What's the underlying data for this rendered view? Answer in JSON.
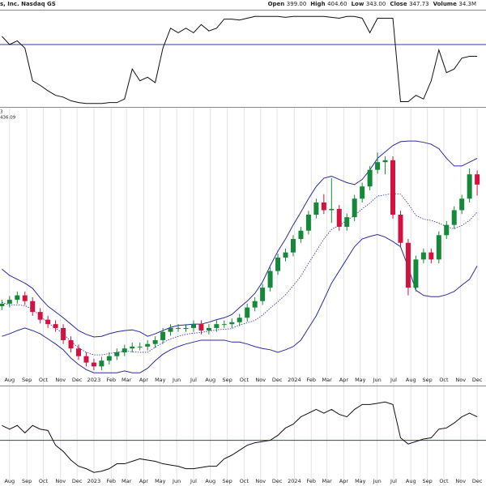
{
  "header": {
    "title": "s, Inc. Nasdaq GS",
    "quote": [
      {
        "label": "Open",
        "value": "399.00"
      },
      {
        "label": "High",
        "value": "404.60"
      },
      {
        "label": "Low",
        "value": "343.00"
      },
      {
        "label": "Close",
        "value": "347.73"
      },
      {
        "label": "Volume",
        "value": "34.3M"
      }
    ]
  },
  "chart_data": [
    {
      "type": "line",
      "color": "#111111",
      "xlim": [
        1.5,
        128.3
      ],
      "ylim": [
        0,
        100
      ],
      "reference_line": 67,
      "reference_color": "#3a3aa8",
      "x": [
        2,
        4,
        6,
        8,
        10,
        12,
        14,
        16,
        18,
        20,
        22,
        24,
        26,
        28,
        30,
        32,
        34,
        36,
        38,
        40,
        42,
        44,
        46,
        48,
        50,
        52,
        54,
        56,
        58,
        60,
        62,
        64,
        66,
        68,
        70,
        72,
        74,
        76,
        78,
        80,
        82,
        84,
        86,
        88,
        90,
        92,
        94,
        96,
        98,
        100,
        102,
        104,
        106,
        108,
        110,
        112,
        114,
        116,
        118,
        120,
        122,
        124,
        126
      ],
      "values": [
        76,
        67,
        71,
        63,
        27,
        22,
        16,
        11,
        9,
        5,
        3,
        2,
        2,
        2,
        3,
        3,
        7,
        40,
        27,
        31,
        25,
        63,
        85,
        80,
        85,
        80,
        89,
        82,
        85,
        95,
        95,
        94,
        96,
        98,
        98,
        98,
        98,
        97,
        98,
        98,
        98,
        98,
        98,
        97,
        96,
        98,
        98,
        96,
        80,
        96,
        96,
        96,
        4,
        4,
        11,
        7,
        27,
        61,
        36,
        40,
        52,
        54,
        54
      ]
    },
    {
      "type": "candlestick",
      "labels": [
        "3",
        "436.09"
      ],
      "label_colors": [
        "#222222",
        "#2b2ba0"
      ],
      "up_color": "#15883a",
      "down_color": "#d3123f",
      "grid": true,
      "xlim": [
        1.5,
        128.3
      ],
      "ylim": [
        60,
        480
      ],
      "xticks": [
        {
          "value": 4,
          "label": "Aug"
        },
        {
          "value": 8.5,
          "label": "Sep"
        },
        {
          "value": 12.8,
          "label": "Oct"
        },
        {
          "value": 17.3,
          "label": "Nov"
        },
        {
          "value": 21.6,
          "label": "Dec"
        },
        {
          "value": 26,
          "label": "2023"
        },
        {
          "value": 30.5,
          "label": "Feb"
        },
        {
          "value": 34.5,
          "label": "Mar"
        },
        {
          "value": 39,
          "label": "Apr"
        },
        {
          "value": 43.3,
          "label": "May"
        },
        {
          "value": 47.6,
          "label": "Jun"
        },
        {
          "value": 52,
          "label": "Jul"
        },
        {
          "value": 56.4,
          "label": "Aug"
        },
        {
          "value": 60.8,
          "label": "Sep"
        },
        {
          "value": 65.2,
          "label": "Oct"
        },
        {
          "value": 69.5,
          "label": "Nov"
        },
        {
          "value": 73.8,
          "label": "Dec"
        },
        {
          "value": 78.3,
          "label": "2024"
        },
        {
          "value": 82.7,
          "label": "Feb"
        },
        {
          "value": 86.8,
          "label": "Mar"
        },
        {
          "value": 91.2,
          "label": "Apr"
        },
        {
          "value": 95.5,
          "label": "May"
        },
        {
          "value": 99.9,
          "label": "Jun"
        },
        {
          "value": 104.2,
          "label": "Jul"
        },
        {
          "value": 108.7,
          "label": "Aug"
        },
        {
          "value": 113,
          "label": "Sep"
        },
        {
          "value": 117.3,
          "label": "Oct"
        },
        {
          "value": 121.7,
          "label": "Nov"
        },
        {
          "value": 126,
          "label": "Dec"
        }
      ],
      "x": [
        2,
        4,
        6,
        8,
        10,
        12,
        14,
        16,
        18,
        20,
        22,
        24,
        26,
        28,
        30,
        32,
        34,
        36,
        38,
        40,
        42,
        44,
        46,
        48,
        50,
        52,
        54,
        56,
        58,
        60,
        62,
        64,
        66,
        68,
        70,
        72,
        74,
        76,
        78,
        80,
        82,
        84,
        86,
        88,
        90,
        92,
        94,
        96,
        98,
        100,
        102,
        104,
        106,
        108,
        110,
        112,
        114,
        116,
        118,
        120,
        122,
        124,
        126
      ],
      "open": [
        170,
        174,
        180,
        187,
        178,
        161,
        149,
        142,
        136,
        117,
        104,
        92,
        82,
        76,
        85,
        92,
        98,
        104,
        107,
        107,
        111,
        117,
        130,
        136,
        136,
        136,
        142,
        132,
        136,
        142,
        142,
        145,
        152,
        168,
        178,
        199,
        225,
        246,
        254,
        275,
        288,
        313,
        332,
        320,
        322,
        294,
        309,
        338,
        357,
        383,
        395,
        398,
        313,
        269,
        199,
        243,
        254,
        243,
        281,
        297,
        320,
        338,
        376
      ],
      "high": [
        180,
        186,
        193,
        193,
        184,
        167,
        155,
        148,
        142,
        123,
        110,
        98,
        88,
        91,
        98,
        104,
        110,
        113,
        113,
        117,
        123,
        136,
        142,
        142,
        142,
        148,
        148,
        142,
        148,
        148,
        151,
        158,
        174,
        184,
        205,
        231,
        252,
        260,
        281,
        294,
        319,
        338,
        345,
        370,
        328,
        315,
        344,
        363,
        389,
        410,
        404,
        404,
        319,
        275,
        249,
        260,
        260,
        287,
        303,
        326,
        344,
        385,
        382
      ],
      "low": [
        164,
        168,
        174,
        172,
        155,
        143,
        136,
        130,
        111,
        98,
        86,
        76,
        70,
        70,
        79,
        86,
        92,
        98,
        101,
        101,
        105,
        111,
        124,
        130,
        130,
        130,
        126,
        126,
        130,
        136,
        136,
        139,
        146,
        162,
        172,
        193,
        219,
        240,
        248,
        269,
        282,
        307,
        314,
        300,
        288,
        288,
        303,
        332,
        351,
        377,
        376,
        307,
        263,
        187,
        193,
        237,
        237,
        237,
        275,
        291,
        314,
        332,
        343
      ],
      "close": [
        174,
        180,
        187,
        178,
        161,
        149,
        142,
        136,
        117,
        104,
        92,
        82,
        76,
        85,
        92,
        98,
        104,
        107,
        107,
        111,
        117,
        130,
        136,
        136,
        136,
        142,
        132,
        136,
        142,
        142,
        145,
        152,
        168,
        178,
        199,
        225,
        246,
        254,
        275,
        288,
        313,
        332,
        320,
        322,
        294,
        309,
        338,
        357,
        383,
        395,
        398,
        313,
        269,
        199,
        243,
        254,
        243,
        281,
        297,
        320,
        338,
        376,
        360
      ],
      "bands": [
        {
          "color": "#2b2ba0",
          "dashed": false,
          "values": [
            228,
            218,
            212,
            206,
            198,
            183,
            170,
            161,
            152,
            142,
            132,
            126,
            122,
            123,
            127,
            130,
            132,
            133,
            130,
            123,
            127,
            132,
            137,
            140,
            141,
            142,
            142,
            145,
            149,
            152,
            157,
            168,
            178,
            190,
            208,
            233,
            256,
            275,
            297,
            317,
            338,
            357,
            370,
            373,
            368,
            363,
            360,
            368,
            383,
            401,
            411,
            421,
            427,
            428,
            428,
            426,
            423,
            416,
            401,
            389,
            389,
            395,
            401
          ]
        },
        {
          "color": "#2b2ba0",
          "dashed": true,
          "values": [
            176,
            172,
            172,
            171,
            165,
            155,
            144,
            136,
            127,
            115,
            105,
            98,
            94,
            94,
            96,
            98,
            100,
            99,
            98,
            98,
            106,
            113,
            119,
            123,
            126,
            128,
            129,
            131,
            133,
            134,
            135,
            141,
            144,
            148,
            156,
            167,
            177,
            188,
            202,
            217,
            237,
            256,
            275,
            290,
            296,
            304,
            312,
            322,
            331,
            342,
            344,
            346,
            345,
            330,
            312,
            306,
            304,
            300,
            294,
            291,
            296,
            304,
            317
          ]
        },
        {
          "color": "#2b2ba0",
          "dashed": false,
          "values": [
            123,
            127,
            132,
            136,
            132,
            127,
            119,
            111,
            102,
            89,
            79,
            71,
            66,
            66,
            66,
            66,
            69,
            66,
            66,
            73,
            85,
            95,
            102,
            107,
            111,
            114,
            117,
            117,
            117,
            117,
            114,
            114,
            111,
            107,
            104,
            102,
            98,
            102,
            107,
            117,
            136,
            155,
            180,
            206,
            225,
            244,
            263,
            275,
            279,
            282,
            278,
            271,
            263,
            231,
            195,
            187,
            185,
            185,
            188,
            193,
            203,
            212,
            233
          ]
        }
      ]
    },
    {
      "type": "line",
      "color": "#111111",
      "grid": true,
      "xlim": [
        1.5,
        128.3
      ],
      "ylim": [
        10,
        90
      ],
      "reference_line": 47,
      "reference_color": "#3a3aa8",
      "xticks": [
        {
          "value": 4,
          "label": "Aug"
        },
        {
          "value": 8.5,
          "label": "Sep"
        },
        {
          "value": 12.8,
          "label": "Oct"
        },
        {
          "value": 17.3,
          "label": "Nov"
        },
        {
          "value": 21.6,
          "label": "Dec"
        },
        {
          "value": 26,
          "label": "2023"
        },
        {
          "value": 30.5,
          "label": "Feb"
        },
        {
          "value": 34.5,
          "label": "Mar"
        },
        {
          "value": 39,
          "label": "Apr"
        },
        {
          "value": 43.3,
          "label": "May"
        },
        {
          "value": 47.6,
          "label": "Jun"
        },
        {
          "value": 52,
          "label": "Jul"
        },
        {
          "value": 56.4,
          "label": "Aug"
        },
        {
          "value": 60.8,
          "label": "Sep"
        },
        {
          "value": 65.2,
          "label": "Oct"
        },
        {
          "value": 69.5,
          "label": "Nov"
        },
        {
          "value": 73.8,
          "label": "Dec"
        },
        {
          "value": 78.3,
          "label": "2024"
        },
        {
          "value": 82.7,
          "label": "Feb"
        },
        {
          "value": 86.8,
          "label": "Mar"
        },
        {
          "value": 91.2,
          "label": "Apr"
        },
        {
          "value": 95.5,
          "label": "May"
        },
        {
          "value": 99.9,
          "label": "Jun"
        },
        {
          "value": 104.2,
          "label": "Jul"
        },
        {
          "value": 108.7,
          "label": "Aug"
        },
        {
          "value": 113,
          "label": "Sep"
        },
        {
          "value": 117.3,
          "label": "Oct"
        },
        {
          "value": 121.7,
          "label": "Nov"
        },
        {
          "value": 126,
          "label": "Dec"
        }
      ],
      "x": [
        2,
        4,
        6,
        8,
        10,
        12,
        14,
        16,
        18,
        20,
        22,
        24,
        26,
        28,
        30,
        32,
        34,
        36,
        38,
        40,
        42,
        44,
        46,
        48,
        50,
        52,
        54,
        56,
        58,
        60,
        62,
        64,
        66,
        68,
        70,
        72,
        74,
        76,
        78,
        80,
        82,
        84,
        86,
        88,
        90,
        92,
        94,
        96,
        98,
        100,
        102,
        104,
        106,
        108,
        110,
        112,
        114,
        116,
        118,
        120,
        122,
        124,
        126
      ],
      "values": [
        59,
        56,
        59,
        53,
        59,
        56,
        55,
        43,
        38,
        31,
        26,
        24,
        21,
        22,
        24,
        28,
        28,
        30,
        32,
        31,
        30,
        28,
        27,
        26,
        24,
        24,
        25,
        26,
        26,
        32,
        35,
        39,
        43,
        45,
        46,
        47,
        51,
        57,
        60,
        66,
        69,
        72,
        69,
        72,
        68,
        66,
        72,
        76,
        76,
        77,
        78,
        76,
        49,
        44,
        46,
        48,
        49,
        56,
        57,
        61,
        66,
        69,
        66
      ]
    }
  ]
}
